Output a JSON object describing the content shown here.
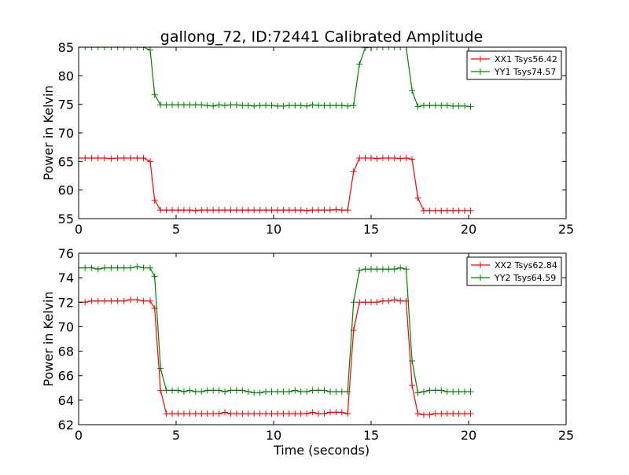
{
  "title": "gallong_72, ID:72441 Calibrated Amplitude",
  "chart_data": [
    {
      "type": "line",
      "xlabel": "",
      "ylabel": "Power in Kelvin",
      "xlim": [
        0,
        25
      ],
      "ylim": [
        55,
        85
      ],
      "xticks": [
        0,
        5,
        10,
        15,
        20,
        25
      ],
      "yticks": [
        55,
        60,
        65,
        70,
        75,
        80,
        85
      ],
      "legend_position": "top-right",
      "x": [
        0.0,
        0.33,
        0.67,
        1.0,
        1.33,
        1.67,
        2.0,
        2.33,
        2.67,
        3.0,
        3.33,
        3.67,
        3.9,
        4.2,
        4.5,
        4.8,
        5.1,
        5.4,
        5.7,
        6.0,
        6.3,
        6.6,
        6.9,
        7.2,
        7.5,
        7.8,
        8.1,
        8.4,
        8.7,
        9.0,
        9.3,
        9.6,
        9.9,
        10.2,
        10.5,
        10.8,
        11.1,
        11.4,
        11.7,
        12.0,
        12.3,
        12.6,
        12.9,
        13.2,
        13.5,
        13.8,
        14.1,
        14.4,
        14.7,
        15.0,
        15.3,
        15.6,
        15.9,
        16.2,
        16.5,
        16.8,
        17.1,
        17.4,
        17.7,
        18.0,
        18.3,
        18.6,
        18.9,
        19.2,
        19.5,
        19.8,
        20.1
      ],
      "series": [
        {
          "name": "XX1 Tsys56.42",
          "color": "#ff0000",
          "values": [
            65.6,
            65.6,
            65.6,
            65.6,
            65.6,
            65.5,
            65.6,
            65.6,
            65.6,
            65.6,
            65.6,
            65.0,
            58.2,
            56.5,
            56.5,
            56.5,
            56.5,
            56.5,
            56.5,
            56.4,
            56.5,
            56.5,
            56.5,
            56.5,
            56.5,
            56.5,
            56.5,
            56.5,
            56.5,
            56.5,
            56.5,
            56.5,
            56.5,
            56.5,
            56.5,
            56.5,
            56.5,
            56.5,
            56.4,
            56.5,
            56.5,
            56.5,
            56.5,
            56.6,
            56.5,
            56.5,
            63.2,
            65.6,
            65.6,
            65.6,
            65.5,
            65.6,
            65.6,
            65.6,
            65.5,
            65.6,
            65.4,
            58.6,
            56.4,
            56.4,
            56.4,
            56.4,
            56.4,
            56.4,
            56.4,
            56.4,
            56.4
          ]
        },
        {
          "name": "YY1 Tsys74.57",
          "color": "#008000",
          "values": [
            85.0,
            85.0,
            85.0,
            85.0,
            85.0,
            85.0,
            85.0,
            85.0,
            85.0,
            85.0,
            85.0,
            84.5,
            76.7,
            74.9,
            74.9,
            74.9,
            74.9,
            74.9,
            74.9,
            74.9,
            74.9,
            74.8,
            74.7,
            74.9,
            74.8,
            74.9,
            74.9,
            74.8,
            74.8,
            74.7,
            74.8,
            74.8,
            74.8,
            74.7,
            74.7,
            74.8,
            74.8,
            74.8,
            74.7,
            74.9,
            74.8,
            74.8,
            74.8,
            74.8,
            74.8,
            74.7,
            74.8,
            82.0,
            84.9,
            85.0,
            85.0,
            85.0,
            85.0,
            85.0,
            85.0,
            85.0,
            77.4,
            74.6,
            74.8,
            74.8,
            74.8,
            74.8,
            74.8,
            74.7,
            74.7,
            74.7,
            74.6
          ]
        }
      ]
    },
    {
      "type": "line",
      "xlabel": "Time (seconds)",
      "ylabel": "Power in Kelvin",
      "xlim": [
        0,
        25
      ],
      "ylim": [
        62,
        76
      ],
      "xticks": [
        0,
        5,
        10,
        15,
        20,
        25
      ],
      "yticks": [
        62,
        64,
        66,
        68,
        70,
        72,
        74,
        76
      ],
      "legend_position": "top-right",
      "x": [
        0.0,
        0.33,
        0.67,
        1.0,
        1.33,
        1.67,
        2.0,
        2.33,
        2.67,
        3.0,
        3.33,
        3.67,
        3.9,
        4.2,
        4.5,
        4.8,
        5.1,
        5.4,
        5.7,
        6.0,
        6.3,
        6.6,
        6.9,
        7.2,
        7.5,
        7.8,
        8.1,
        8.4,
        8.7,
        9.0,
        9.3,
        9.6,
        9.9,
        10.2,
        10.5,
        10.8,
        11.1,
        11.4,
        11.7,
        12.0,
        12.3,
        12.6,
        12.9,
        13.2,
        13.5,
        13.8,
        14.1,
        14.4,
        14.7,
        15.0,
        15.3,
        15.6,
        15.9,
        16.2,
        16.5,
        16.8,
        17.1,
        17.4,
        17.7,
        18.0,
        18.3,
        18.6,
        18.9,
        19.2,
        19.5,
        19.8,
        20.1
      ],
      "series": [
        {
          "name": "XX2 Tsys62.84",
          "color": "#ff0000",
          "values": [
            72.0,
            72.0,
            72.1,
            72.1,
            72.1,
            72.1,
            72.1,
            72.1,
            72.2,
            72.2,
            72.1,
            72.1,
            71.5,
            64.8,
            62.9,
            62.9,
            62.9,
            62.9,
            62.9,
            62.9,
            62.9,
            62.9,
            62.9,
            62.9,
            63.0,
            62.9,
            62.9,
            62.9,
            62.9,
            62.9,
            62.9,
            62.9,
            62.9,
            62.9,
            62.9,
            62.9,
            62.9,
            62.9,
            62.9,
            63.0,
            62.9,
            62.9,
            63.0,
            63.0,
            63.0,
            62.9,
            69.7,
            72.0,
            72.0,
            72.0,
            72.0,
            72.1,
            72.1,
            72.2,
            72.1,
            72.1,
            65.2,
            62.9,
            62.8,
            62.8,
            62.9,
            62.9,
            62.9,
            62.9,
            62.9,
            62.9,
            62.9
          ]
        },
        {
          "name": "YY2 Tsys64.59",
          "color": "#008000",
          "values": [
            74.8,
            74.8,
            74.8,
            74.7,
            74.8,
            74.8,
            74.8,
            74.8,
            74.8,
            74.9,
            74.8,
            74.8,
            74.1,
            66.6,
            64.8,
            64.8,
            64.8,
            64.7,
            64.8,
            64.7,
            64.7,
            64.8,
            64.8,
            64.8,
            64.7,
            64.8,
            64.8,
            64.8,
            64.7,
            64.6,
            64.6,
            64.7,
            64.7,
            64.7,
            64.7,
            64.7,
            64.8,
            64.7,
            64.7,
            64.8,
            64.8,
            64.8,
            64.7,
            64.7,
            64.7,
            64.7,
            72.0,
            74.6,
            74.7,
            74.7,
            74.7,
            74.7,
            74.7,
            74.7,
            74.8,
            74.7,
            67.2,
            64.6,
            64.7,
            64.8,
            64.8,
            64.8,
            64.7,
            64.7,
            64.7,
            64.7,
            64.7
          ]
        }
      ]
    }
  ]
}
